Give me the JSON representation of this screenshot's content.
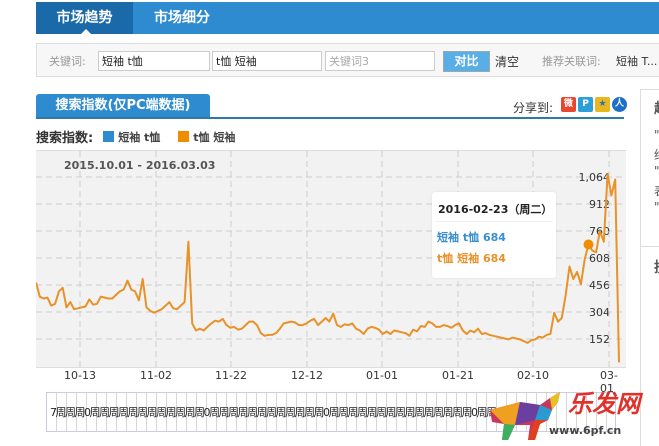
{
  "topnav": {
    "tabs": [
      {
        "label": "市场趋势",
        "active": true
      },
      {
        "label": "市场细分",
        "active": false
      }
    ]
  },
  "keyword_bar": {
    "label": "关键词:",
    "inputs": [
      {
        "value": "短袖 t恤",
        "placeholder": ""
      },
      {
        "value": "t恤 短袖",
        "placeholder": ""
      },
      {
        "value": "",
        "placeholder": "关键词3"
      }
    ],
    "compare_button": "对比",
    "clear_link": "清空",
    "recommend_label": "推荐关联词:",
    "recommend_value": "短袖 T..."
  },
  "section": {
    "tab_label": "搜索指数(仅PC端数据)",
    "share_label": "分享到:",
    "share_icons": [
      "weibo-icon",
      "pengyou-icon",
      "qzone-icon",
      "renren-icon"
    ]
  },
  "legend": {
    "title": "搜索指数:",
    "items": [
      {
        "label": "短袖 t恤",
        "color": "#2e8bd0"
      },
      {
        "label": "t恤 短袖",
        "color": "#f08c00"
      }
    ]
  },
  "chart_data": {
    "type": "line",
    "title": "",
    "date_range": "2015.10.01 - 2016.03.03",
    "x_tick_labels": [
      "10-13",
      "11-02",
      "11-22",
      "12-12",
      "01-01",
      "01-21",
      "02-10",
      "03-01"
    ],
    "y_tick_labels": [
      "152",
      "304",
      "456",
      "608",
      "760",
      "912",
      "1,064"
    ],
    "ylim": [
      0,
      1140
    ],
    "grid": true,
    "series": [
      {
        "name": "t恤 短袖",
        "color": "#e8922a",
        "values": [
          470,
          390,
          380,
          385,
          340,
          350,
          420,
          440,
          330,
          360,
          320,
          325,
          330,
          335,
          375,
          345,
          350,
          390,
          385,
          380,
          380,
          400,
          420,
          430,
          480,
          430,
          420,
          370,
          490,
          330,
          310,
          300,
          310,
          320,
          340,
          360,
          325,
          320,
          340,
          360,
          700,
          240,
          200,
          210,
          200,
          220,
          240,
          255,
          250,
          265,
          230,
          215,
          220,
          205,
          210,
          230,
          250,
          250,
          230,
          185,
          170,
          175,
          175,
          185,
          210,
          240,
          245,
          250,
          245,
          230,
          230,
          240,
          255,
          265,
          230,
          250,
          270,
          250,
          295,
          230,
          220,
          235,
          230,
          240,
          210,
          200,
          180,
          210,
          220,
          215,
          205,
          180,
          195,
          180,
          200,
          195,
          190,
          185,
          170,
          205,
          195,
          225,
          220,
          250,
          240,
          220,
          220,
          230,
          225,
          215,
          230,
          240,
          200,
          180,
          200,
          190,
          210,
          180,
          185,
          175,
          170,
          165,
          160,
          155,
          150,
          160,
          155,
          150,
          140,
          130,
          145,
          150,
          165,
          160,
          175,
          180,
          300,
          250,
          270,
          400,
          560,
          490,
          530,
          460,
          600,
          684,
          650,
          640,
          760,
          700,
          1080,
          960,
          1050,
          20
        ]
      },
      {
        "name": "短袖 t恤",
        "color": "#2e8bd0",
        "values": []
      }
    ],
    "tooltip": {
      "date": "2016-02-23（周二）",
      "rows": [
        {
          "label": "短袖 t恤",
          "value": "684",
          "color": "#3a8fd0"
        },
        {
          "label": "t恤 短袖",
          "value": "684",
          "color": "#e8922a"
        }
      ]
    }
  },
  "navigator": {
    "labels_text": "7周周周0周周周周周周周周周周周周0周周周周周周周周周周周周0周周周周周周周周周周周周周周周0周周二4"
  },
  "right_panel": {
    "lines": [
      "\"",
      "绐",
      "\"",
      "表",
      "\""
    ]
  },
  "watermark": {
    "title": "乐发网",
    "url": "www.6pf.cn"
  }
}
